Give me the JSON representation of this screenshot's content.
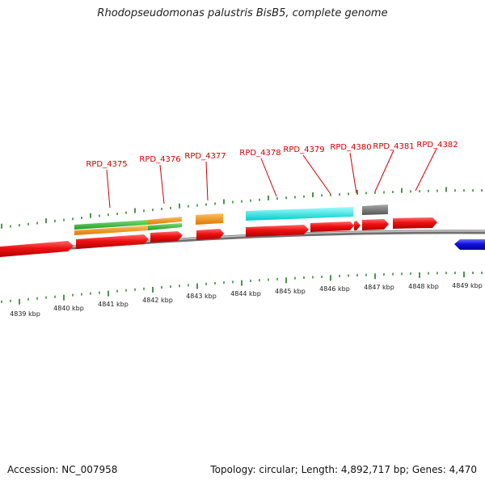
{
  "title": "Rhodopseudomonas palustris BisB5, complete genome",
  "accession": "Accession: NC_007958",
  "summary": "Topology: circular; Length: 4,892,717 bp; Genes: 4,470",
  "colors": {
    "gene_forward": "#ee1111",
    "gene_reverse": "#1111dd",
    "cog_green": "#33bb33",
    "cog_orange": "#ff9900",
    "cog_cyan": "#11eeee",
    "cog_gray": "#777777",
    "tick": "#227722",
    "label": "#cc0000",
    "backbone": "#888888"
  },
  "scale_labels": [
    "4839 kbp",
    "4840 kbp",
    "4841 kbp",
    "4842 kbp",
    "4843 kbp",
    "4844 kbp",
    "4845 kbp",
    "4846 kbp",
    "4847 kbp",
    "4848 kbp",
    "4849 kbp"
  ],
  "gene_labels": [
    "RPD_4375",
    "RPD_4376",
    "RPD_4377",
    "RPD_4378",
    "RPD_4379",
    "RPD_4380",
    "RPD_4381",
    "RPD_4382"
  ]
}
